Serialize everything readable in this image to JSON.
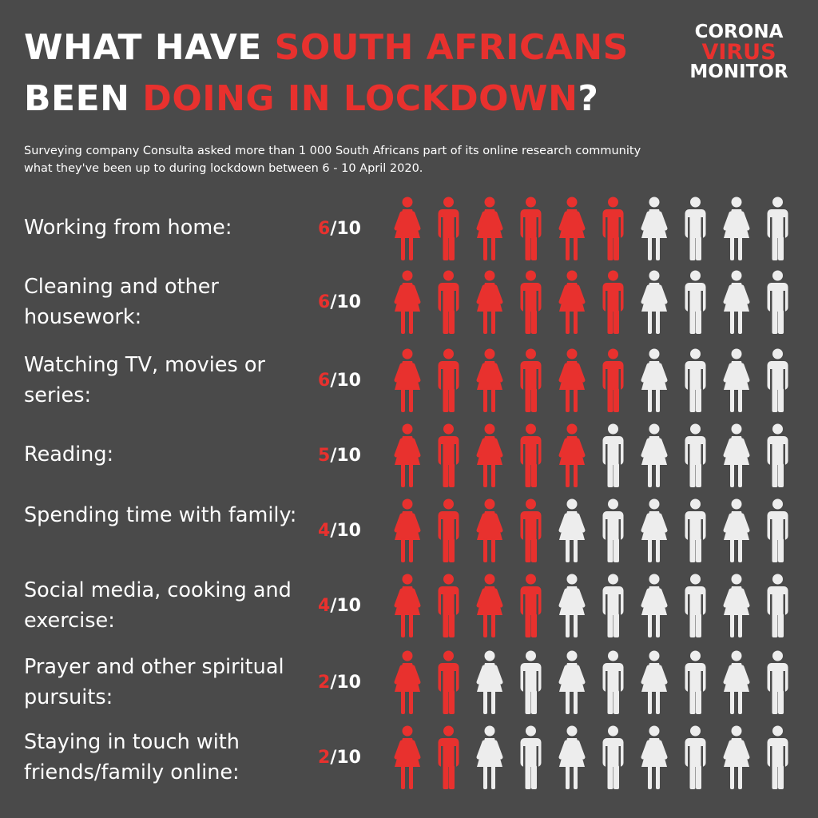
{
  "header": {
    "title_l1_a": "WHAT HAVE ",
    "title_l1_b": "SOUTH AFRICANS",
    "title_l2_a": "BEEN ",
    "title_l2_b": "DOING IN LOCKDOWN",
    "title_l2_c": "?",
    "logo_l1": "CORONA",
    "logo_l2": "VIRUS",
    "logo_l3": "MONITOR",
    "subtitle": "Surveying company Consulta asked more than 1 000 South Africans part of its online research community what they've been up to during lockdown between 6 - 10 April 2020."
  },
  "colors": {
    "background": "#4a4a4a",
    "accent": "#e8312e",
    "inactive": "#ededed",
    "text": "#ffffff"
  },
  "chart_data": {
    "type": "pictograph",
    "total": 10,
    "denominator_label": "/10",
    "rows": [
      {
        "label": "Working from home:",
        "value": 6
      },
      {
        "label": "Cleaning and other housework:",
        "value": 6
      },
      {
        "label": "Watching TV, movies or series:",
        "value": 6
      },
      {
        "label": "Reading:",
        "value": 5
      },
      {
        "label": "Spending time with family:",
        "value": 4
      },
      {
        "label": "Social media, cooking and exercise:",
        "value": 4
      },
      {
        "label": "Prayer and other spiritual pursuits:",
        "value": 2
      },
      {
        "label": "Staying in touch with friends/family online:",
        "value": 2
      }
    ]
  }
}
